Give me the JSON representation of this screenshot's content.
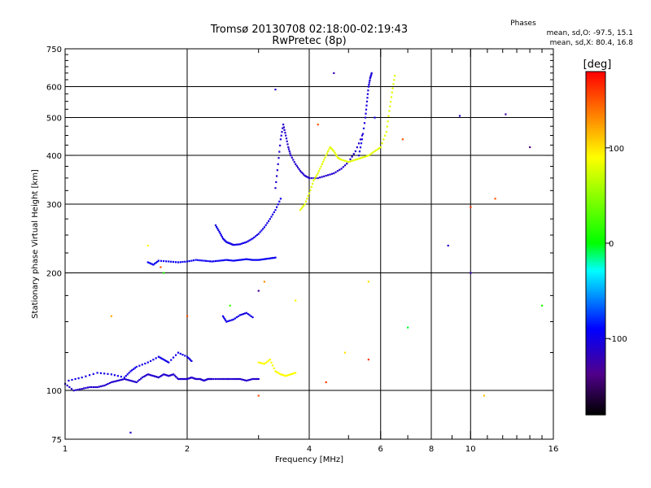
{
  "chart_data": {
    "type": "scatter",
    "title": "Tromsø 20130708 02:18:00-02:19:43",
    "subtitle": "RwPretec (8p)",
    "xlabel": "Frequency [MHz]",
    "ylabel": "Stationary phase Virtual Height [km]",
    "x_scale": "log",
    "y_scale": "log",
    "xlim": [
      1,
      16
    ],
    "ylim": [
      75,
      750
    ],
    "grid": true,
    "x_ticks": [
      "1",
      "2",
      "4",
      "6",
      "8",
      "10",
      "16"
    ],
    "y_ticks": [
      "75",
      "100",
      "200",
      "300",
      "400",
      "500",
      "600",
      "750"
    ],
    "phases_title": "Phases",
    "phases_line1": "mean, sd,O: -97.5, 15.1",
    "phases_line2": "mean, sd,X:  80.4, 16.8",
    "colorbar": {
      "label": "[deg]",
      "min": -180,
      "max": 180,
      "ticks": [
        "100",
        "0",
        "-100"
      ],
      "tick_values": [
        100,
        0,
        -100
      ]
    },
    "traces": [
      {
        "xs": [
          1.0,
          1.05,
          1.1,
          1.15,
          1.2,
          1.25,
          1.3,
          1.35,
          1.4,
          1.45,
          1.5,
          1.55,
          1.6,
          1.65,
          1.7,
          1.75,
          1.8,
          1.85,
          1.9,
          1.95,
          2.0,
          2.05,
          2.1,
          2.15,
          2.2,
          2.25,
          2.3,
          2.4,
          2.5,
          2.6,
          2.7,
          2.8,
          2.9,
          3.0
        ],
        "ys": [
          104,
          100,
          101,
          102,
          102,
          103,
          105,
          106,
          107,
          106,
          105,
          108,
          110,
          109,
          108,
          110,
          109,
          110,
          107,
          107,
          107,
          108,
          107,
          107,
          106,
          107,
          107,
          107,
          107,
          107,
          107,
          106,
          107,
          107
        ],
        "phase": -110
      },
      {
        "xs": [
          1.02,
          1.1,
          1.2,
          1.3,
          1.4,
          1.45,
          1.5,
          1.6,
          1.7,
          1.75,
          1.8,
          1.9,
          2.0,
          2.05
        ],
        "ys": [
          106,
          108,
          111,
          110,
          108,
          112,
          115,
          118,
          122,
          120,
          118,
          125,
          122,
          119
        ],
        "phase": -100
      },
      {
        "xs": [
          1.6,
          1.65,
          1.7,
          1.8,
          1.9,
          2.0,
          2.1,
          2.2,
          2.3,
          2.4,
          2.5,
          2.6,
          2.7,
          2.8,
          2.9,
          3.0,
          3.1,
          3.2,
          3.3
        ],
        "ys": [
          213,
          210,
          215,
          214,
          213,
          214,
          216,
          215,
          214,
          215,
          216,
          215,
          216,
          217,
          216,
          216,
          217,
          218,
          219
        ],
        "phase": -95
      },
      {
        "xs": [
          2.35,
          2.4,
          2.45,
          2.5,
          2.55,
          2.6,
          2.7,
          2.8,
          2.9,
          3.0,
          3.1,
          3.2,
          3.3,
          3.4
        ],
        "ys": [
          265,
          255,
          245,
          240,
          238,
          236,
          237,
          240,
          245,
          252,
          262,
          275,
          290,
          310
        ],
        "phase": -100
      },
      {
        "xs": [
          3.3,
          3.35,
          3.4,
          3.45,
          3.5,
          3.55,
          3.6,
          3.7,
          3.8,
          3.9,
          4.0,
          4.2,
          4.4,
          4.6,
          4.8,
          5.0,
          5.2,
          5.4
        ],
        "ys": [
          330,
          380,
          440,
          480,
          450,
          420,
          400,
          380,
          365,
          355,
          350,
          350,
          355,
          360,
          370,
          385,
          410,
          450
        ],
        "phase": -110
      },
      {
        "xs": [
          5.3,
          5.4,
          5.5,
          5.55,
          5.6,
          5.65,
          5.7
        ],
        "ys": [
          400,
          440,
          500,
          550,
          600,
          630,
          650
        ],
        "phase": -105
      },
      {
        "xs": [
          2.45,
          2.5,
          2.6,
          2.7,
          2.8,
          2.9
        ],
        "ys": [
          155,
          150,
          152,
          156,
          158,
          154
        ],
        "phase": -100
      },
      {
        "xs": [
          3.8,
          3.9,
          4.0,
          4.1,
          4.2,
          4.3,
          4.4,
          4.5,
          4.6,
          4.7,
          4.8,
          5.0,
          5.2,
          5.4,
          5.6,
          5.8,
          6.0,
          6.2,
          6.3,
          6.4,
          6.5
        ],
        "ys": [
          290,
          300,
          320,
          345,
          360,
          380,
          400,
          420,
          410,
          395,
          390,
          385,
          390,
          395,
          400,
          410,
          420,
          460,
          520,
          580,
          640
        ],
        "phase": 80
      },
      {
        "xs": [
          3.0,
          3.1,
          3.2,
          3.3,
          3.4,
          3.5,
          3.6,
          3.7
        ],
        "ys": [
          118,
          117,
          120,
          112,
          110,
          109,
          110,
          111
        ],
        "phase": 90
      }
    ],
    "scatter_points": [
      {
        "x": 3.3,
        "y": 590,
        "phase": -110
      },
      {
        "x": 4.6,
        "y": 650,
        "phase": -120
      },
      {
        "x": 12.2,
        "y": 510,
        "phase": -130
      },
      {
        "x": 14.0,
        "y": 420,
        "phase": -140
      },
      {
        "x": 9.4,
        "y": 505,
        "phase": -115
      },
      {
        "x": 8.8,
        "y": 235,
        "phase": -110
      },
      {
        "x": 1.6,
        "y": 235,
        "phase": 90
      },
      {
        "x": 1.45,
        "y": 78,
        "phase": -110
      },
      {
        "x": 3.7,
        "y": 170,
        "phase": 90
      },
      {
        "x": 4.2,
        "y": 480,
        "phase": 150
      },
      {
        "x": 10.0,
        "y": 295,
        "phase": 160
      },
      {
        "x": 11.5,
        "y": 310,
        "phase": 150
      },
      {
        "x": 15.0,
        "y": 165,
        "phase": 10
      },
      {
        "x": 7.0,
        "y": 145,
        "phase": -5
      },
      {
        "x": 10.0,
        "y": 200,
        "phase": -120
      },
      {
        "x": 5.6,
        "y": 190,
        "phase": 100
      },
      {
        "x": 5.6,
        "y": 120,
        "phase": 160
      },
      {
        "x": 4.9,
        "y": 125,
        "phase": 100
      },
      {
        "x": 4.4,
        "y": 105,
        "phase": 160
      },
      {
        "x": 3.0,
        "y": 97,
        "phase": 150
      },
      {
        "x": 1.75,
        "y": 200,
        "phase": 10
      },
      {
        "x": 2.0,
        "y": 155,
        "phase": 150
      },
      {
        "x": 3.1,
        "y": 190,
        "phase": 130
      },
      {
        "x": 3.0,
        "y": 180,
        "phase": -130
      },
      {
        "x": 1.3,
        "y": 155,
        "phase": 120
      },
      {
        "x": 10.8,
        "y": 97,
        "phase": 110
      },
      {
        "x": 2.55,
        "y": 165,
        "phase": 20
      },
      {
        "x": 5.8,
        "y": 500,
        "phase": -100
      },
      {
        "x": 6.8,
        "y": 440,
        "phase": 150
      },
      {
        "x": 1.72,
        "y": 207,
        "phase": 150
      }
    ]
  }
}
